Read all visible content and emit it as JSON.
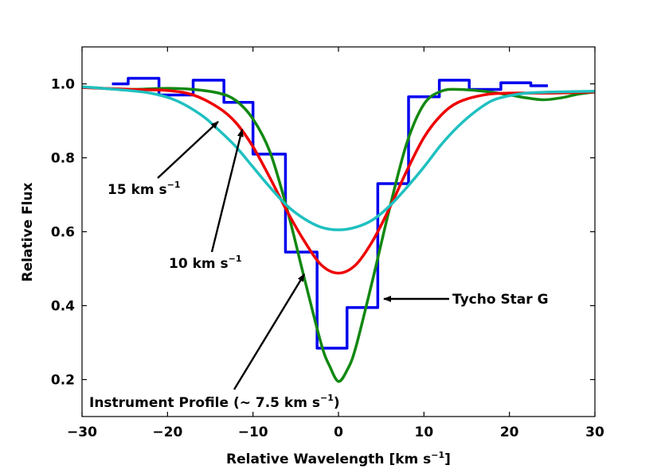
{
  "chart_data": {
    "type": "line",
    "title": "",
    "xlabel": "Relative Wavelength [km s",
    "xlabel_sup": "−1",
    "xlabel_end": "]",
    "ylabel": "Relative Flux",
    "xlim": [
      -30,
      30
    ],
    "ylim": [
      0.1,
      1.1
    ],
    "xticks": [
      -30,
      -20,
      -10,
      0,
      10,
      20,
      30
    ],
    "yticks": [
      0.2,
      0.4,
      0.6,
      0.8,
      1.0
    ],
    "xtick_labels": [
      "−30",
      "−20",
      "−10",
      "0",
      "10",
      "20",
      "30"
    ],
    "ytick_labels": [
      "0.2",
      "0.4",
      "0.6",
      "0.8",
      "1.0"
    ],
    "grid": false,
    "series": [
      {
        "name": "Tycho Star G",
        "style": "step",
        "color": "#0000ee",
        "edges": [
          -26.5,
          -24.6,
          -21.0,
          -17.0,
          -13.4,
          -10.0,
          -6.2,
          -2.5,
          1.0,
          4.6,
          8.2,
          11.8,
          15.3,
          19.0,
          22.5,
          24.5
        ],
        "values": [
          1.0,
          1.015,
          0.97,
          1.01,
          0.95,
          0.81,
          0.545,
          0.285,
          0.395,
          0.73,
          0.965,
          1.01,
          0.985,
          1.003,
          0.995
        ]
      },
      {
        "name": "Instrument Profile (~ 7.5 km s−1)",
        "style": "line",
        "color": "#118811",
        "x": [
          -30,
          -25,
          -20,
          -17,
          -14,
          -12,
          -10,
          -8,
          -6,
          -4,
          -2,
          -1,
          0,
          1,
          2,
          4,
          6,
          8,
          10,
          12,
          14,
          17,
          20,
          22,
          24,
          26,
          28,
          30
        ],
        "y": [
          0.992,
          0.985,
          0.988,
          0.985,
          0.975,
          0.955,
          0.905,
          0.815,
          0.66,
          0.475,
          0.295,
          0.235,
          0.195,
          0.225,
          0.285,
          0.47,
          0.665,
          0.84,
          0.945,
          0.98,
          0.985,
          0.98,
          0.97,
          0.962,
          0.957,
          0.962,
          0.972,
          0.978
        ]
      },
      {
        "name": "10 km s−1",
        "style": "line",
        "color": "#ee0000",
        "x": [
          -30,
          -24,
          -20,
          -17,
          -14,
          -12,
          -10,
          -8,
          -6,
          -4,
          -2,
          0,
          2,
          4,
          6,
          8,
          10,
          12,
          14,
          17,
          20,
          25,
          30
        ],
        "y": [
          0.99,
          0.985,
          0.982,
          0.97,
          0.935,
          0.895,
          0.83,
          0.745,
          0.655,
          0.575,
          0.51,
          0.488,
          0.51,
          0.575,
          0.665,
          0.765,
          0.855,
          0.915,
          0.95,
          0.97,
          0.975,
          0.975,
          0.978
        ]
      },
      {
        "name": "15 km s−1",
        "style": "line",
        "color": "#1fc0c0",
        "x": [
          -30,
          -26,
          -22,
          -19,
          -16,
          -14,
          -12,
          -10,
          -8,
          -6,
          -4,
          -2,
          0,
          2,
          4,
          6,
          8,
          10,
          12,
          14,
          16,
          18,
          20,
          22,
          25,
          30
        ],
        "y": [
          0.992,
          0.985,
          0.975,
          0.955,
          0.915,
          0.875,
          0.83,
          0.775,
          0.72,
          0.67,
          0.635,
          0.612,
          0.605,
          0.612,
          0.632,
          0.67,
          0.72,
          0.775,
          0.835,
          0.885,
          0.925,
          0.955,
          0.968,
          0.975,
          0.978,
          0.98
        ]
      }
    ],
    "annotations": [
      {
        "text": "15 km s",
        "sup": "−1"
      },
      {
        "text": "10 km s",
        "sup": "−1"
      },
      {
        "text": "Tycho Star G",
        "sup": ""
      },
      {
        "text": "Instrument Profile (∼ 7.5 km s",
        "sup": "−1",
        "tail": ")"
      }
    ]
  }
}
